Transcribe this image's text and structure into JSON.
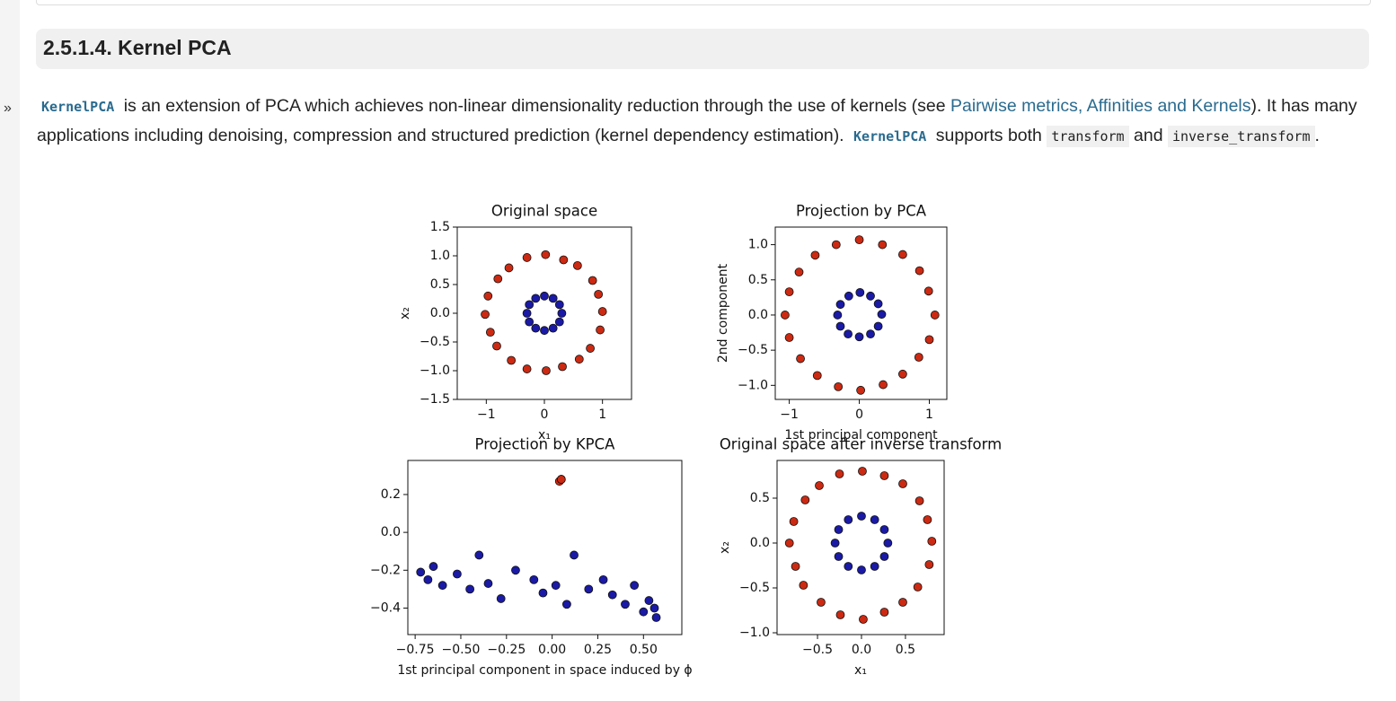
{
  "page": {
    "sidebar_marker": "»",
    "heading": "2.5.1.4. Kernel PCA",
    "intro": [
      "KernelPCA",
      " is an extension of PCA which achieves non-linear dimensionality reduction through the use of kernels (see ",
      "Pairwise metrics, Affinities and Kernels",
      "). It has many applications including denoising, compression and structured prediction (kernel dependency estimation). ",
      "KernelPCA",
      " supports both ",
      "transform",
      " and ",
      "inverse_transform",
      "."
    ]
  },
  "chart_data": [
    {
      "type": "scatter",
      "title": "Original space",
      "x_label": "x₁",
      "y_label": "x₂",
      "xlim": [
        -1.5,
        1.5
      ],
      "ylim": [
        -1.5,
        1.5
      ],
      "xticks": [
        {
          "value": -1,
          "label": "−1"
        },
        0,
        1
      ],
      "yticks": [
        {
          "value": -1.5,
          "label": "−1.5"
        },
        {
          "value": -1,
          "label": "−1.0"
        },
        {
          "value": -0.5,
          "label": "−0.5"
        },
        {
          "value": 0,
          "label": "0.0"
        },
        0.5,
        {
          "value": 1,
          "label": "1.0"
        },
        1.5
      ],
      "series": [
        {
          "color": "#cc2a12",
          "x": [
            1.0,
            0.93,
            0.83,
            0.57,
            0.33,
            0.02,
            -0.3,
            -0.61,
            -0.8,
            -0.97,
            -1.02,
            -0.93,
            -0.82,
            -0.57,
            -0.3,
            0.03,
            0.31,
            0.6,
            0.79,
            0.96
          ],
          "values": [
            0.03,
            0.33,
            0.57,
            0.83,
            0.93,
            1.02,
            0.97,
            0.79,
            0.6,
            0.3,
            -0.02,
            -0.33,
            -0.57,
            -0.82,
            -0.97,
            -1.0,
            -0.93,
            -0.8,
            -0.61,
            -0.29
          ]
        },
        {
          "color": "#1a1aa6",
          "x": [
            0.3,
            0.26,
            0.15,
            0.0,
            -0.15,
            -0.26,
            -0.3,
            -0.26,
            -0.15,
            0.0,
            0.15,
            0.26
          ],
          "values": [
            0.0,
            0.15,
            0.26,
            0.3,
            0.26,
            0.15,
            0.0,
            -0.15,
            -0.26,
            -0.3,
            -0.26,
            -0.15
          ]
        }
      ]
    },
    {
      "type": "scatter",
      "title": "Projection by PCA",
      "x_label": "1st principal component",
      "y_label": "2nd component",
      "xlim": [
        -1.2,
        1.25
      ],
      "ylim": [
        -1.2,
        1.25
      ],
      "xticks": [
        {
          "value": -1,
          "label": "−1"
        },
        0,
        1
      ],
      "yticks": [
        {
          "value": -1,
          "label": "−1.0"
        },
        {
          "value": -0.5,
          "label": "−0.5"
        },
        {
          "value": 0,
          "label": "0.0"
        },
        0.5,
        {
          "value": 1,
          "label": "1.0"
        }
      ],
      "series": [
        {
          "color": "#cc2a12",
          "x": [
            1.08,
            0.99,
            0.86,
            0.62,
            0.33,
            0.0,
            -0.33,
            -0.63,
            -0.86,
            -1.0,
            -1.06,
            -1.0,
            -0.84,
            -0.6,
            -0.3,
            0.02,
            0.34,
            0.62,
            0.85,
            1.0
          ],
          "values": [
            0.0,
            0.34,
            0.63,
            0.86,
            1.0,
            1.07,
            1.0,
            0.85,
            0.61,
            0.33,
            0.0,
            -0.32,
            -0.62,
            -0.86,
            -1.02,
            -1.07,
            -0.99,
            -0.84,
            -0.6,
            -0.35
          ]
        },
        {
          "color": "#1a1aa6",
          "x": [
            0.32,
            0.27,
            0.16,
            0.01,
            -0.15,
            -0.27,
            -0.31,
            -0.27,
            -0.16,
            0.0,
            0.16,
            0.27
          ],
          "values": [
            0.01,
            0.16,
            0.27,
            0.32,
            0.27,
            0.15,
            0.0,
            -0.16,
            -0.27,
            -0.31,
            -0.27,
            -0.16
          ]
        }
      ]
    },
    {
      "type": "scatter",
      "title": "Projection by KPCA",
      "x_label": "1st principal component in space induced by ϕ",
      "xlim": [
        -0.79,
        0.71
      ],
      "ylim": [
        -0.54,
        0.38
      ],
      "xticks": [
        {
          "value": -0.75,
          "label": "−0.75"
        },
        {
          "value": -0.5,
          "label": "−0.50"
        },
        {
          "value": -0.25,
          "label": "−0.25"
        },
        {
          "value": 0,
          "label": "0.00"
        },
        0.25,
        {
          "value": 0.5,
          "label": "0.50"
        }
      ],
      "yticks": [
        0.2,
        {
          "value": 0,
          "label": "0.0"
        },
        {
          "value": -0.2,
          "label": "−0.2"
        },
        {
          "value": -0.4,
          "label": "−0.4"
        }
      ],
      "series": [
        {
          "color": "#cc2a12",
          "x": [
            0.04,
            0.05,
            0.05
          ],
          "values": [
            0.27,
            0.28,
            0.28
          ]
        },
        {
          "color": "#1a1aa6",
          "x": [
            -0.72,
            -0.68,
            -0.65,
            -0.6,
            -0.52,
            -0.45,
            -0.4,
            -0.35,
            -0.28,
            -0.2,
            -0.1,
            -0.05,
            0.02,
            0.08,
            0.12,
            0.2,
            0.28,
            0.33,
            0.4,
            0.45,
            0.5,
            0.53,
            0.56,
            0.57
          ],
          "values": [
            -0.21,
            -0.25,
            -0.18,
            -0.28,
            -0.22,
            -0.3,
            -0.12,
            -0.27,
            -0.35,
            -0.2,
            -0.25,
            -0.32,
            -0.28,
            -0.38,
            -0.12,
            -0.3,
            -0.25,
            -0.33,
            -0.38,
            -0.28,
            -0.42,
            -0.36,
            -0.4,
            -0.45
          ]
        }
      ]
    },
    {
      "type": "scatter",
      "title": "Original space after inverse transform",
      "x_label": "x₁",
      "y_label": "x₂",
      "xlim": [
        -0.96,
        0.94
      ],
      "ylim": [
        -1.02,
        0.92
      ],
      "xticks": [
        {
          "value": -0.5,
          "label": "−0.5"
        },
        {
          "value": 0,
          "label": "0.0"
        },
        0.5
      ],
      "yticks": [
        {
          "value": -1,
          "label": "−1.0"
        },
        {
          "value": -0.5,
          "label": "−0.5"
        },
        {
          "value": 0,
          "label": "0.0"
        },
        0.5
      ],
      "series": [
        {
          "color": "#cc2a12",
          "x": [
            0.8,
            0.75,
            0.66,
            0.47,
            0.26,
            0.01,
            -0.25,
            -0.48,
            -0.64,
            -0.77,
            -0.82,
            -0.75,
            -0.66,
            -0.46,
            -0.24,
            0.02,
            0.26,
            0.47,
            0.64,
            0.77
          ],
          "values": [
            0.02,
            0.26,
            0.47,
            0.66,
            0.75,
            0.8,
            0.77,
            0.64,
            0.48,
            0.24,
            0.0,
            -0.26,
            -0.47,
            -0.66,
            -0.8,
            -0.85,
            -0.77,
            -0.66,
            -0.49,
            -0.24
          ]
        },
        {
          "color": "#1a1aa6",
          "x": [
            0.3,
            0.26,
            0.15,
            0.0,
            -0.15,
            -0.26,
            -0.3,
            -0.26,
            -0.15,
            0.0,
            0.15,
            0.26
          ],
          "values": [
            0.0,
            0.15,
            0.26,
            0.3,
            0.26,
            0.15,
            0.0,
            -0.15,
            -0.26,
            -0.3,
            -0.26,
            -0.15
          ]
        }
      ]
    }
  ]
}
